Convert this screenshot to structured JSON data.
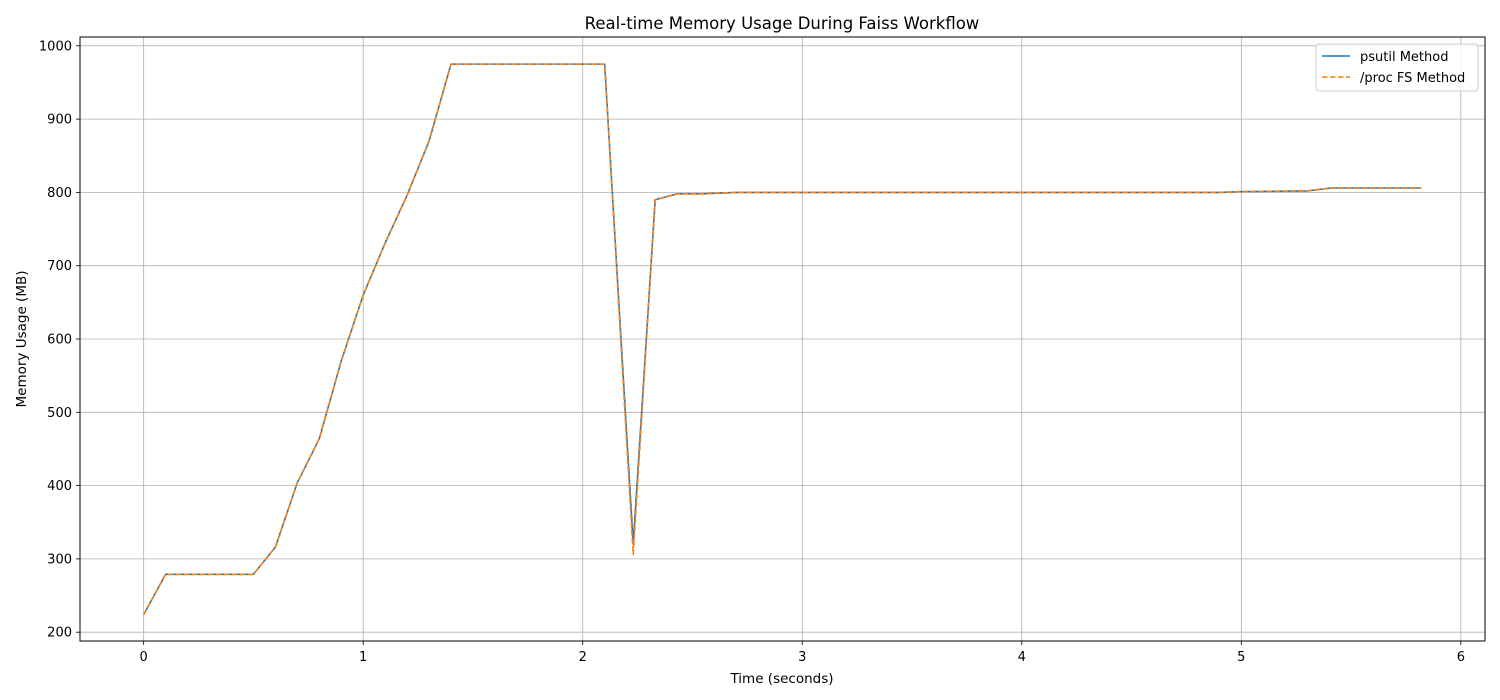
{
  "chart_data": {
    "type": "line",
    "title": "Real-time Memory Usage During Faiss Workflow",
    "xlabel": "Time (seconds)",
    "ylabel": "Memory Usage (MB)",
    "xlim": [
      -0.29,
      6.11
    ],
    "ylim": [
      188,
      1012
    ],
    "xticks": [
      0,
      1,
      2,
      3,
      4,
      5,
      6
    ],
    "yticks": [
      200,
      300,
      400,
      500,
      600,
      700,
      800,
      900,
      1000
    ],
    "grid": true,
    "legend_position": "top-right",
    "series": [
      {
        "name": "psutil Method",
        "color": "#1f77b4",
        "style": "solid",
        "x": [
          0,
          0.1,
          0.2,
          0.3,
          0.4,
          0.5,
          0.6,
          0.7,
          0.8,
          0.9,
          1.0,
          1.1,
          1.2,
          1.3,
          1.4,
          1.5,
          1.6,
          1.7,
          1.8,
          1.9,
          2.0,
          2.1,
          2.23,
          2.33,
          2.43,
          2.55,
          2.7,
          2.85,
          3.0,
          3.5,
          4.0,
          4.5,
          4.9,
          5.0,
          5.3,
          5.41,
          5.6,
          5.82
        ],
        "y": [
          224,
          279,
          279,
          279,
          279,
          279,
          316,
          404,
          464,
          570,
          660,
          731,
          796,
          870,
          975,
          975,
          975,
          975,
          975,
          975,
          975,
          975,
          320,
          790,
          798,
          798,
          800,
          800,
          800,
          800,
          800,
          800,
          800,
          801,
          802,
          806,
          806,
          806
        ]
      },
      {
        "name": "/proc FS Method",
        "color": "#ff7f0e",
        "style": "dashed",
        "x": [
          0,
          0.1,
          0.2,
          0.3,
          0.4,
          0.5,
          0.6,
          0.7,
          0.8,
          0.9,
          1.0,
          1.1,
          1.2,
          1.3,
          1.4,
          1.5,
          1.6,
          1.7,
          1.8,
          1.9,
          2.0,
          2.1,
          2.23,
          2.33,
          2.43,
          2.55,
          2.7,
          2.85,
          3.0,
          3.5,
          4.0,
          4.5,
          4.9,
          5.0,
          5.3,
          5.41,
          5.6,
          5.82
        ],
        "y": [
          224,
          279,
          279,
          279,
          279,
          279,
          316,
          404,
          464,
          570,
          660,
          731,
          796,
          870,
          975,
          975,
          975,
          975,
          975,
          975,
          975,
          975,
          306,
          790,
          798,
          798,
          800,
          800,
          800,
          800,
          800,
          800,
          800,
          801,
          802,
          806,
          806,
          806
        ]
      }
    ]
  }
}
